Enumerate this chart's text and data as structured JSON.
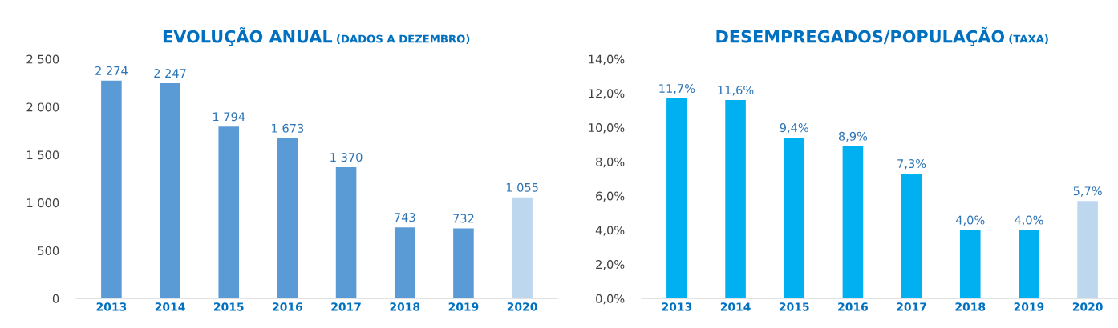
{
  "chart_data": [
    {
      "type": "bar",
      "title": "EVOLUÇÃO ANUAL",
      "subtitle": "(DADOS A DEZEMBRO)",
      "categories": [
        "2013",
        "2014",
        "2015",
        "2016",
        "2017",
        "2018",
        "2019",
        "2020"
      ],
      "values": [
        2274,
        2247,
        1794,
        1673,
        1370,
        743,
        732,
        1055
      ],
      "colors": [
        "#5b9bd5",
        "#5b9bd5",
        "#5b9bd5",
        "#5b9bd5",
        "#5b9bd5",
        "#5b9bd5",
        "#5b9bd5",
        "#bdd7ee"
      ],
      "value_labels": [
        "2 274",
        "2 247",
        "1 794",
        "1 673",
        "1 370",
        "743",
        "732",
        "1 055"
      ],
      "ylim": [
        0,
        2500
      ],
      "yticks": [
        0,
        {
          "value": 500,
          "label": "500"
        },
        {
          "value": 1000,
          "label": "1 000"
        },
        {
          "value": 1500,
          "label": "1 500"
        },
        {
          "value": 2000,
          "label": "2 000"
        },
        {
          "value": 2500,
          "label": "2 500"
        }
      ],
      "grid": false,
      "legend": false
    },
    {
      "type": "bar",
      "title": "DESEMPREGADOS/POPULAÇÃO",
      "subtitle": "(TAXA)",
      "categories": [
        "2013",
        "2014",
        "2015",
        "2016",
        "2017",
        "2018",
        "2019",
        "2020"
      ],
      "values": [
        11.7,
        11.6,
        9.4,
        8.9,
        7.3,
        4.0,
        4.0,
        5.7
      ],
      "colors": [
        "#00b0f0",
        "#00b0f0",
        "#00b0f0",
        "#00b0f0",
        "#00b0f0",
        "#00b0f0",
        "#00b0f0",
        "#bdd7ee"
      ],
      "value_labels": [
        "11,7%",
        "11,6%",
        "9,4%",
        "8,9%",
        "7,3%",
        "4,0%",
        "4,0%",
        "5,7%"
      ],
      "ylim": [
        0,
        14
      ],
      "yticks": [
        {
          "value": 0,
          "label": "0,0%"
        },
        {
          "value": 2,
          "label": "2,0%"
        },
        {
          "value": 4,
          "label": "4,0%"
        },
        {
          "value": 6,
          "label": "6,0%"
        },
        {
          "value": 8,
          "label": "8,0%"
        },
        {
          "value": 10,
          "label": "10,0%"
        },
        {
          "value": 12,
          "label": "12,0%"
        },
        {
          "value": 14,
          "label": "14,0%"
        }
      ],
      "grid": false,
      "legend": false
    }
  ]
}
